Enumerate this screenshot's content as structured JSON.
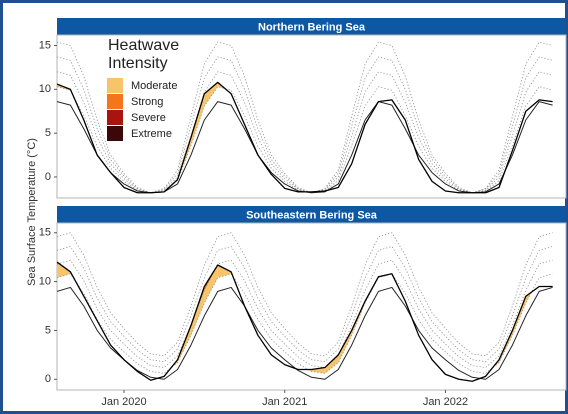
{
  "y_label": "Sea Surface Temperature (°C)",
  "legend": {
    "title": "Heatwave Intensity",
    "items": [
      {
        "label": "Moderate",
        "color": "#f7c46c"
      },
      {
        "label": "Strong",
        "color": "#f3761c"
      },
      {
        "label": "Severe",
        "color": "#a8140f"
      },
      {
        "label": "Extreme",
        "color": "#3a0808"
      }
    ]
  },
  "chart_data": [
    {
      "type": "line",
      "title": "Northern Bering Sea",
      "x": [
        "2019-08",
        "2019-09",
        "2019-10",
        "2019-11",
        "2019-12",
        "2020-01",
        "2020-02",
        "2020-03",
        "2020-04",
        "2020-05",
        "2020-06",
        "2020-07",
        "2020-08",
        "2020-09",
        "2020-10",
        "2020-11",
        "2020-12",
        "2021-01",
        "2021-02",
        "2021-03",
        "2021-04",
        "2021-05",
        "2021-06",
        "2021-07",
        "2021-08",
        "2021-09",
        "2021-10",
        "2021-11",
        "2021-12",
        "2022-01",
        "2022-02",
        "2022-03",
        "2022-04",
        "2022-05",
        "2022-06",
        "2022-07",
        "2022-08",
        "2022-09"
      ],
      "xlim": [
        "2019-08",
        "2022-10"
      ],
      "ylim": [
        -2.4,
        16.2
      ],
      "yticks": [
        0,
        5,
        10,
        15
      ],
      "series": [
        {
          "style": "threshold",
          "color": "#8c8c8c",
          "values": [
            10.3,
            9.9,
            7.0,
            3.5,
            1.0,
            -0.5,
            -1.5,
            -1.8,
            -1.6,
            -0.4,
            3.6,
            8.1,
            10.3,
            9.9,
            7.0,
            3.5,
            1.0,
            -0.5,
            -1.5,
            -1.8,
            -1.6,
            -0.4,
            3.6,
            8.1,
            10.3,
            9.9,
            7.0,
            3.5,
            1.0,
            -0.5,
            -1.5,
            -1.8,
            -1.6,
            -0.4,
            3.6,
            8.1,
            10.3,
            9.9
          ]
        },
        {
          "style": "threshold",
          "color": "#8c8c8c",
          "values": [
            12.0,
            11.6,
            8.5,
            4.5,
            1.5,
            -0.2,
            -1.4,
            -1.8,
            -1.5,
            0.0,
            4.7,
            9.7,
            12.0,
            11.6,
            8.5,
            4.5,
            1.5,
            -0.2,
            -1.4,
            -1.8,
            -1.5,
            0.0,
            4.7,
            9.7,
            12.0,
            11.6,
            8.5,
            4.5,
            1.5,
            -0.2,
            -1.4,
            -1.8,
            -1.5,
            0.0,
            4.7,
            9.7,
            12.0,
            11.6
          ]
        },
        {
          "style": "threshold",
          "color": "#8c8c8c",
          "values": [
            13.7,
            13.3,
            10.0,
            5.5,
            2.0,
            0.1,
            -1.3,
            -1.8,
            -1.4,
            0.4,
            5.8,
            11.3,
            13.7,
            13.3,
            10.0,
            5.5,
            2.0,
            0.1,
            -1.3,
            -1.8,
            -1.4,
            0.4,
            5.8,
            11.3,
            13.7,
            13.3,
            10.0,
            5.5,
            2.0,
            0.1,
            -1.3,
            -1.8,
            -1.4,
            0.4,
            5.8,
            11.3,
            13.7,
            13.3
          ]
        },
        {
          "style": "threshold",
          "color": "#8c8c8c",
          "values": [
            15.4,
            15.0,
            11.5,
            6.5,
            2.5,
            0.4,
            -1.2,
            -1.8,
            -1.3,
            0.8,
            6.9,
            12.9,
            15.4,
            15.0,
            11.5,
            6.5,
            2.5,
            0.4,
            -1.2,
            -1.8,
            -1.3,
            0.8,
            6.9,
            12.9,
            15.4,
            15.0,
            11.5,
            6.5,
            2.5,
            0.4,
            -1.2,
            -1.8,
            -1.3,
            0.8,
            6.9,
            12.9,
            15.4,
            15.0
          ]
        },
        {
          "style": "climatology",
          "color": "#222222",
          "values": [
            8.6,
            8.2,
            5.5,
            2.5,
            0.5,
            -0.8,
            -1.6,
            -1.8,
            -1.7,
            -0.8,
            2.5,
            6.5,
            8.6,
            8.2,
            5.5,
            2.5,
            0.5,
            -0.8,
            -1.6,
            -1.8,
            -1.7,
            -0.8,
            2.5,
            6.5,
            8.6,
            8.2,
            5.5,
            2.5,
            0.5,
            -0.8,
            -1.6,
            -1.8,
            -1.7,
            -0.8,
            2.5,
            6.5,
            8.6,
            8.2
          ]
        },
        {
          "style": "observed",
          "color": "#000000",
          "values": [
            10.6,
            10.0,
            6.5,
            2.5,
            0.5,
            -1.2,
            -1.8,
            -1.8,
            -1.7,
            -0.3,
            4.5,
            9.5,
            10.8,
            9.5,
            6.0,
            2.5,
            0.3,
            -1.3,
            -1.7,
            -1.7,
            -1.6,
            -1.2,
            1.5,
            6.0,
            8.6,
            8.8,
            6.5,
            2.0,
            -0.5,
            -1.6,
            -1.8,
            -1.8,
            -1.8,
            -1.2,
            3.0,
            7.5,
            8.8,
            8.6
          ]
        }
      ]
    },
    {
      "type": "line",
      "title": "Southeastern Bering Sea",
      "x": [
        "2019-08",
        "2019-09",
        "2019-10",
        "2019-11",
        "2019-12",
        "2020-01",
        "2020-02",
        "2020-03",
        "2020-04",
        "2020-05",
        "2020-06",
        "2020-07",
        "2020-08",
        "2020-09",
        "2020-10",
        "2020-11",
        "2020-12",
        "2021-01",
        "2021-02",
        "2021-03",
        "2021-04",
        "2021-05",
        "2021-06",
        "2021-07",
        "2021-08",
        "2021-09",
        "2021-10",
        "2021-11",
        "2021-12",
        "2022-01",
        "2022-02",
        "2022-03",
        "2022-04",
        "2022-05",
        "2022-06",
        "2022-07",
        "2022-08",
        "2022-09"
      ],
      "xlim": [
        "2019-08",
        "2022-10"
      ],
      "ylim": [
        -1.1,
        16.0
      ],
      "yticks": [
        0,
        5,
        10,
        15
      ],
      "xticks": [
        {
          "value": "2020-01",
          "label": "Jan 2020"
        },
        {
          "value": "2021-01",
          "label": "Jan 2021"
        },
        {
          "value": "2022-01",
          "label": "Jan 2022"
        }
      ],
      "series": [
        {
          "style": "threshold",
          "color": "#8c8c8c",
          "values": [
            10.4,
            10.8,
            8.8,
            6.1,
            4.1,
            2.8,
            1.6,
            0.8,
            0.6,
            1.7,
            4.5,
            7.8,
            10.4,
            10.8,
            8.8,
            6.1,
            4.1,
            2.8,
            1.6,
            0.8,
            0.6,
            1.7,
            4.5,
            7.8,
            10.4,
            10.8,
            8.8,
            6.1,
            4.1,
            2.8,
            1.6,
            0.8,
            0.6,
            1.7,
            4.5,
            7.8,
            10.4,
            10.8
          ]
        },
        {
          "style": "threshold",
          "color": "#8c8c8c",
          "values": [
            11.8,
            12.2,
            10.1,
            7.2,
            5.0,
            3.6,
            2.3,
            1.4,
            1.2,
            2.4,
            5.5,
            9.1,
            11.8,
            12.2,
            10.1,
            7.2,
            5.0,
            3.6,
            2.3,
            1.4,
            1.2,
            2.4,
            5.5,
            9.1,
            11.8,
            12.2,
            10.1,
            7.2,
            5.0,
            3.6,
            2.3,
            1.4,
            1.2,
            2.4,
            5.5,
            9.1,
            11.8,
            12.2
          ]
        },
        {
          "style": "threshold",
          "color": "#8c8c8c",
          "values": [
            13.2,
            13.6,
            11.4,
            8.3,
            5.9,
            4.4,
            3.0,
            2.0,
            1.8,
            3.1,
            6.5,
            10.4,
            13.2,
            13.6,
            11.4,
            8.3,
            5.9,
            4.4,
            3.0,
            2.0,
            1.8,
            3.1,
            6.5,
            10.4,
            13.2,
            13.6,
            11.4,
            8.3,
            5.9,
            4.4,
            3.0,
            2.0,
            1.8,
            3.1,
            6.5,
            10.4,
            13.2,
            13.6
          ]
        },
        {
          "style": "threshold",
          "color": "#8c8c8c",
          "values": [
            14.6,
            15.0,
            12.7,
            9.4,
            6.8,
            5.2,
            3.7,
            2.6,
            2.4,
            3.8,
            7.5,
            11.7,
            14.6,
            15.0,
            12.7,
            9.4,
            6.8,
            5.2,
            3.7,
            2.6,
            2.4,
            3.8,
            7.5,
            11.7,
            14.6,
            15.0,
            12.7,
            9.4,
            6.8,
            5.2,
            3.7,
            2.6,
            2.4,
            3.8,
            7.5,
            11.7,
            14.6,
            15.0
          ]
        },
        {
          "style": "climatology",
          "color": "#222222",
          "values": [
            9.0,
            9.4,
            7.5,
            5.0,
            3.2,
            2.0,
            0.9,
            0.2,
            0.0,
            1.0,
            3.5,
            6.5,
            9.0,
            9.4,
            7.5,
            5.0,
            3.2,
            2.0,
            0.9,
            0.2,
            0.0,
            1.0,
            3.5,
            6.5,
            9.0,
            9.4,
            7.5,
            5.0,
            3.2,
            2.0,
            0.9,
            0.2,
            0.0,
            1.0,
            3.5,
            6.5,
            9.0,
            9.4
          ]
        },
        {
          "style": "observed",
          "color": "#000000",
          "values": [
            12.0,
            11.0,
            8.5,
            6.0,
            3.5,
            2.0,
            0.8,
            -0.1,
            0.3,
            2.0,
            5.5,
            9.5,
            11.7,
            11.0,
            7.5,
            4.5,
            2.5,
            1.5,
            1.0,
            1.0,
            1.2,
            2.5,
            5.0,
            8.0,
            10.5,
            10.8,
            8.0,
            4.5,
            2.0,
            0.5,
            0.0,
            -0.2,
            0.3,
            2.0,
            5.0,
            8.5,
            9.5,
            9.5
          ]
        }
      ]
    }
  ]
}
